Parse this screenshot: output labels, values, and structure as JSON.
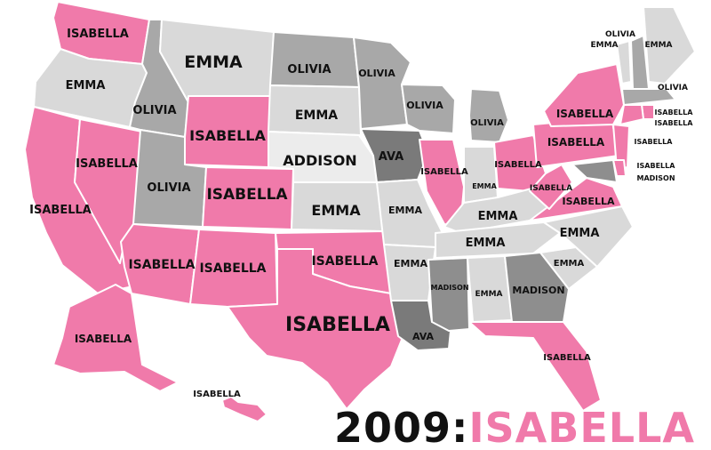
{
  "title": {
    "year": "2009:",
    "name": "ISABELLA"
  },
  "colors": {
    "ISABELLA": "#f07aaa",
    "EMMA": "#d9d9d9",
    "OLIVIA": "#a8a8a8",
    "ADDISON": "#ececec",
    "AVA": "#7a7a7a",
    "MADISON": "#8e8e8e"
  },
  "states": [
    {
      "id": "WA",
      "name": "ISABELLA"
    },
    {
      "id": "OR",
      "name": "EMMA"
    },
    {
      "id": "CA",
      "name": "ISABELLA"
    },
    {
      "id": "NV",
      "name": "ISABELLA"
    },
    {
      "id": "ID",
      "name": "OLIVIA"
    },
    {
      "id": "MT",
      "name": "EMMA"
    },
    {
      "id": "WY",
      "name": "ISABELLA"
    },
    {
      "id": "UT",
      "name": "OLIVIA"
    },
    {
      "id": "CO",
      "name": "ISABELLA"
    },
    {
      "id": "AZ",
      "name": "ISABELLA"
    },
    {
      "id": "NM",
      "name": "ISABELLA"
    },
    {
      "id": "ND",
      "name": "OLIVIA"
    },
    {
      "id": "SD",
      "name": "EMMA"
    },
    {
      "id": "NE",
      "name": "ADDISON"
    },
    {
      "id": "KS",
      "name": "EMMA"
    },
    {
      "id": "OK",
      "name": "ISABELLA"
    },
    {
      "id": "TX",
      "name": "ISABELLA"
    },
    {
      "id": "MN",
      "name": "OLIVIA"
    },
    {
      "id": "IA",
      "name": "AVA"
    },
    {
      "id": "MO",
      "name": "EMMA"
    },
    {
      "id": "AR",
      "name": "EMMA"
    },
    {
      "id": "LA",
      "name": "AVA"
    },
    {
      "id": "WI",
      "name": "OLIVIA"
    },
    {
      "id": "IL",
      "name": "ISABELLA"
    },
    {
      "id": "MI",
      "name": "OLIVIA"
    },
    {
      "id": "IN",
      "name": "EMMA"
    },
    {
      "id": "OH",
      "name": "ISABELLA"
    },
    {
      "id": "KY",
      "name": "EMMA"
    },
    {
      "id": "TN",
      "name": "EMMA"
    },
    {
      "id": "MS",
      "name": "MADISON"
    },
    {
      "id": "AL",
      "name": "EMMA"
    },
    {
      "id": "GA",
      "name": "MADISON"
    },
    {
      "id": "FL",
      "name": "ISABELLA"
    },
    {
      "id": "SC",
      "name": "EMMA"
    },
    {
      "id": "NC",
      "name": "EMMA"
    },
    {
      "id": "VA",
      "name": "ISABELLA"
    },
    {
      "id": "WV",
      "name": "ISABELLA"
    },
    {
      "id": "PA",
      "name": "ISABELLA"
    },
    {
      "id": "NY",
      "name": "ISABELLA"
    },
    {
      "id": "VT",
      "name": "EMMA"
    },
    {
      "id": "NH",
      "name": "OLIVIA"
    },
    {
      "id": "ME",
      "name": "EMMA"
    },
    {
      "id": "MA",
      "name": "OLIVIA"
    },
    {
      "id": "RI",
      "name": "ISABELLA"
    },
    {
      "id": "CT",
      "name": "ISABELLA"
    },
    {
      "id": "NJ",
      "name": "ISABELLA"
    },
    {
      "id": "DE",
      "name": "ISABELLA"
    },
    {
      "id": "MD",
      "name": "MADISON"
    },
    {
      "id": "AK",
      "name": "ISABELLA"
    },
    {
      "id": "HI",
      "name": "ISABELLA"
    }
  ]
}
